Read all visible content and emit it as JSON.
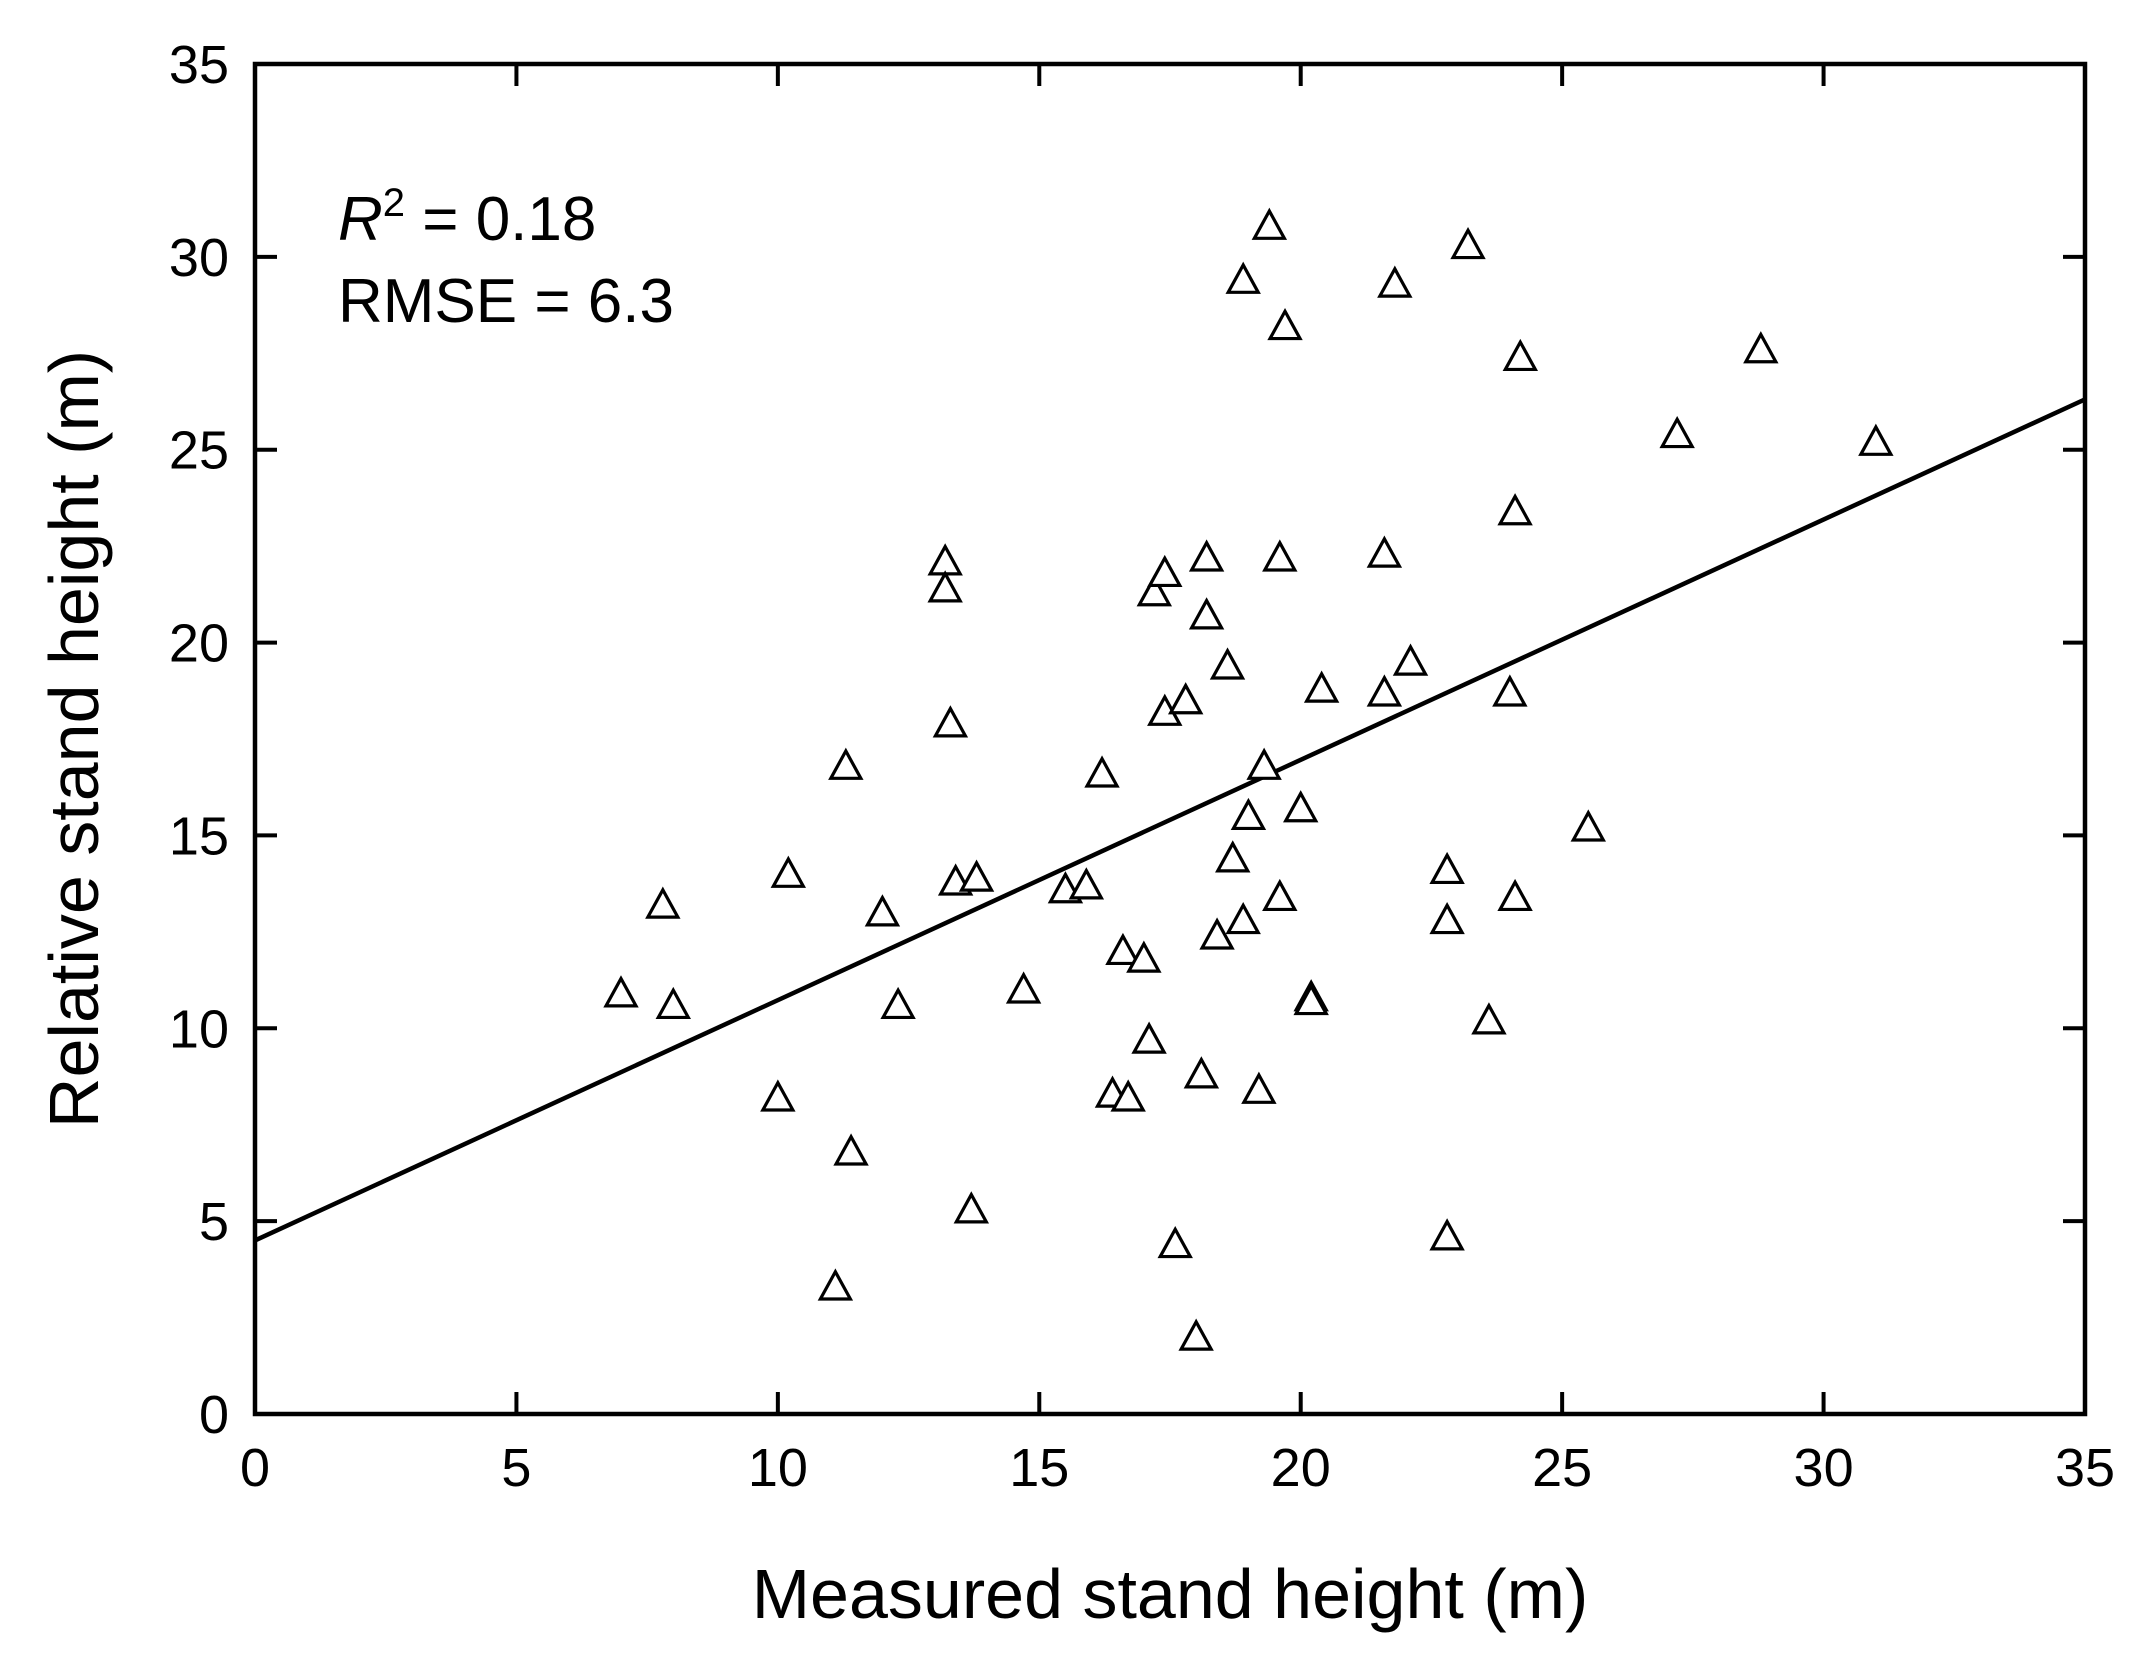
{
  "chart_data": {
    "type": "scatter",
    "xlabel": "Measured stand height (m)",
    "ylabel": "Relative stand height (m)",
    "xlim": [
      0,
      35
    ],
    "ylim": [
      0,
      35
    ],
    "xticks": [
      "0",
      "5",
      "10",
      "15",
      "20",
      "25",
      "30",
      "35"
    ],
    "yticks": [
      "0",
      "5",
      "10",
      "15",
      "20",
      "25",
      "30",
      "35"
    ],
    "grid": false,
    "marker": "open-triangle",
    "annotations": {
      "r2_symbol": "R",
      "r2_exponent": "2",
      "r2_value": " = 0.18",
      "rmse": "RMSE = 6.3"
    },
    "fit_line": {
      "intercept": 4.5,
      "slope": 0.623
    },
    "points": [
      [
        7.0,
        10.9
      ],
      [
        7.8,
        13.2
      ],
      [
        8.0,
        10.6
      ],
      [
        10.0,
        8.2
      ],
      [
        10.2,
        14.0
      ],
      [
        11.1,
        3.3
      ],
      [
        11.3,
        16.8
      ],
      [
        11.4,
        6.8
      ],
      [
        12.0,
        13.0
      ],
      [
        12.3,
        10.6
      ],
      [
        13.2,
        22.1
      ],
      [
        13.2,
        21.4
      ],
      [
        13.3,
        17.9
      ],
      [
        13.4,
        13.8
      ],
      [
        13.7,
        5.3
      ],
      [
        13.8,
        13.9
      ],
      [
        14.7,
        11.0
      ],
      [
        15.5,
        13.6
      ],
      [
        15.9,
        13.7
      ],
      [
        16.2,
        16.6
      ],
      [
        16.4,
        8.3
      ],
      [
        16.6,
        12.0
      ],
      [
        16.7,
        8.2
      ],
      [
        17.0,
        11.8
      ],
      [
        17.1,
        9.7
      ],
      [
        17.2,
        21.3
      ],
      [
        17.4,
        21.8
      ],
      [
        17.4,
        18.2
      ],
      [
        17.6,
        4.4
      ],
      [
        17.8,
        18.5
      ],
      [
        18.0,
        2.0
      ],
      [
        18.1,
        8.8
      ],
      [
        18.2,
        22.2
      ],
      [
        18.2,
        20.7
      ],
      [
        18.4,
        12.4
      ],
      [
        18.6,
        19.4
      ],
      [
        18.7,
        14.4
      ],
      [
        18.9,
        12.8
      ],
      [
        18.9,
        29.4
      ],
      [
        19.0,
        15.5
      ],
      [
        19.2,
        8.4
      ],
      [
        19.3,
        16.8
      ],
      [
        19.4,
        30.8
      ],
      [
        19.6,
        22.2
      ],
      [
        19.6,
        13.4
      ],
      [
        19.7,
        28.2
      ],
      [
        20.0,
        15.7
      ],
      [
        20.2,
        10.8
      ],
      [
        20.2,
        10.7
      ],
      [
        20.4,
        18.8
      ],
      [
        21.6,
        22.3
      ],
      [
        21.6,
        18.7
      ],
      [
        21.8,
        29.3
      ],
      [
        22.1,
        19.5
      ],
      [
        22.8,
        14.1
      ],
      [
        22.8,
        12.8
      ],
      [
        22.8,
        4.6
      ],
      [
        23.2,
        30.3
      ],
      [
        23.6,
        10.2
      ],
      [
        24.0,
        18.7
      ],
      [
        24.1,
        23.4
      ],
      [
        24.1,
        13.4
      ],
      [
        24.2,
        27.4
      ],
      [
        25.5,
        15.2
      ],
      [
        27.2,
        25.4
      ],
      [
        28.8,
        27.6
      ],
      [
        31.0,
        25.2
      ]
    ]
  }
}
